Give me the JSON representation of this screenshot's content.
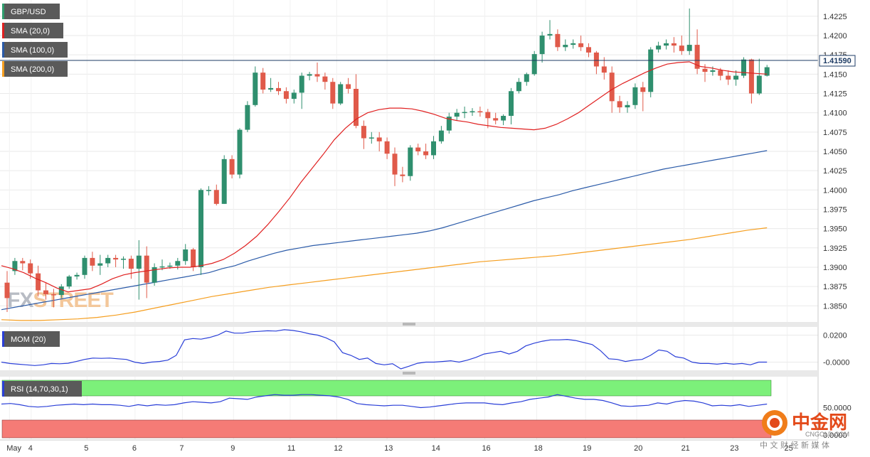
{
  "chart_data": {
    "type": "candlestick",
    "symbol": "GBP/USD",
    "current_price": "1.41590",
    "legend": [
      "GBP/USD",
      "SMA (20,0)",
      "SMA (100,0)",
      "SMA (200,0)"
    ],
    "y_ticks": [
      "1.4225",
      "1.4200",
      "1.4175",
      "1.4150",
      "1.4125",
      "1.4100",
      "1.4075",
      "1.4050",
      "1.4025",
      "1.4000",
      "1.3975",
      "1.3950",
      "1.3925",
      "1.3900",
      "1.3875",
      "1.3850"
    ],
    "ylim": [
      1.383,
      1.4235
    ],
    "x_ticks": [
      "May",
      "4",
      "5",
      "6",
      "7",
      "9",
      "11",
      "12",
      "13",
      "14",
      "16",
      "18",
      "19",
      "20",
      "21",
      "23",
      "25"
    ],
    "candles": [
      [
        1.388,
        1.3895,
        1.386,
        1.3842
      ],
      [
        1.3895,
        1.3912,
        1.3908,
        1.389
      ],
      [
        1.3908,
        1.3912,
        1.3905,
        1.3896
      ],
      [
        1.3905,
        1.391,
        1.3892,
        1.3885
      ],
      [
        1.3892,
        1.3902,
        1.387,
        1.3862
      ],
      [
        1.387,
        1.388,
        1.3865,
        1.3858
      ],
      [
        1.3865,
        1.3872,
        1.3864,
        1.3848
      ],
      [
        1.3864,
        1.3878,
        1.3875,
        1.386
      ],
      [
        1.3875,
        1.389,
        1.3888,
        1.3872
      ],
      [
        1.3888,
        1.3893,
        1.389,
        1.3884
      ],
      [
        1.389,
        1.3915,
        1.3912,
        1.3885
      ],
      [
        1.3912,
        1.392,
        1.3902,
        1.3895
      ],
      [
        1.3902,
        1.3916,
        1.3905,
        1.389
      ],
      [
        1.3905,
        1.3916,
        1.3912,
        1.39
      ],
      [
        1.3912,
        1.3916,
        1.391,
        1.39
      ],
      [
        1.391,
        1.3914,
        1.3911,
        1.3898
      ],
      [
        1.3911,
        1.3915,
        1.3898,
        1.3885
      ],
      [
        1.3898,
        1.3935,
        1.3915,
        1.3858
      ],
      [
        1.3915,
        1.3927,
        1.388,
        1.386
      ],
      [
        1.388,
        1.3905,
        1.39,
        1.3876
      ],
      [
        1.39,
        1.391,
        1.3901,
        1.3896
      ],
      [
        1.3901,
        1.3906,
        1.3902,
        1.3898
      ],
      [
        1.3902,
        1.3912,
        1.3908,
        1.3897
      ],
      [
        1.3908,
        1.393,
        1.3923,
        1.3903
      ],
      [
        1.3923,
        1.3925,
        1.39,
        1.3895
      ],
      [
        1.39,
        1.4002,
        1.4,
        1.389
      ],
      [
        1.4,
        1.4005,
        1.4,
        1.3993
      ],
      [
        1.4,
        1.4007,
        1.3982,
        1.398
      ],
      [
        1.3982,
        1.4045,
        1.404,
        1.3982
      ],
      [
        1.404,
        1.4045,
        1.402,
        1.4015
      ],
      [
        1.402,
        1.408,
        1.4078,
        1.4015
      ],
      [
        1.4078,
        1.4115,
        1.411,
        1.4075
      ],
      [
        1.411,
        1.416,
        1.4152,
        1.4108
      ],
      [
        1.4152,
        1.4158,
        1.413,
        1.4125
      ],
      [
        1.413,
        1.4145,
        1.4132,
        1.4127
      ],
      [
        1.4132,
        1.414,
        1.4128,
        1.4123
      ],
      [
        1.4128,
        1.4133,
        1.4118,
        1.4112
      ],
      [
        1.4118,
        1.413,
        1.4126,
        1.4112
      ],
      [
        1.4126,
        1.4152,
        1.4148,
        1.4105
      ],
      [
        1.4148,
        1.4153,
        1.415,
        1.4142
      ],
      [
        1.415,
        1.4165,
        1.4147,
        1.414
      ],
      [
        1.4147,
        1.4152,
        1.414,
        1.413
      ],
      [
        1.414,
        1.4145,
        1.4112,
        1.4105
      ],
      [
        1.4112,
        1.414,
        1.4137,
        1.411
      ],
      [
        1.4137,
        1.4145,
        1.4131,
        1.4125
      ],
      [
        1.4131,
        1.415,
        1.4083,
        1.408
      ],
      [
        1.4083,
        1.409,
        1.4067,
        1.4053
      ],
      [
        1.4067,
        1.4075,
        1.4068,
        1.406
      ],
      [
        1.4068,
        1.4075,
        1.4063,
        1.405
      ],
      [
        1.4063,
        1.4068,
        1.4047,
        1.404
      ],
      [
        1.4047,
        1.4055,
        1.402,
        1.4005
      ],
      [
        1.402,
        1.403,
        1.4018,
        1.401
      ],
      [
        1.4018,
        1.4058,
        1.4055,
        1.4012
      ],
      [
        1.4055,
        1.406,
        1.405,
        1.4045
      ],
      [
        1.405,
        1.406,
        1.4045,
        1.404
      ],
      [
        1.4045,
        1.407,
        1.4063,
        1.404
      ],
      [
        1.4063,
        1.4083,
        1.4077,
        1.406
      ],
      [
        1.4077,
        1.41,
        1.4095,
        1.4073
      ],
      [
        1.4095,
        1.4105,
        1.41,
        1.409
      ],
      [
        1.41,
        1.4108,
        1.4101,
        1.4093
      ],
      [
        1.4101,
        1.4106,
        1.4102,
        1.4096
      ],
      [
        1.4102,
        1.4108,
        1.4101,
        1.4095
      ],
      [
        1.4101,
        1.4105,
        1.4093,
        1.408
      ],
      [
        1.4093,
        1.41,
        1.409,
        1.4085
      ],
      [
        1.409,
        1.4098,
        1.4096,
        1.4084
      ],
      [
        1.4096,
        1.4132,
        1.4128,
        1.4085
      ],
      [
        1.4128,
        1.4145,
        1.414,
        1.4125
      ],
      [
        1.414,
        1.4152,
        1.415,
        1.4135
      ],
      [
        1.415,
        1.418,
        1.4176,
        1.4148
      ],
      [
        1.4176,
        1.4205,
        1.42,
        1.4165
      ],
      [
        1.42,
        1.422,
        1.4202,
        1.4195
      ],
      [
        1.4202,
        1.4208,
        1.4185,
        1.418
      ],
      [
        1.4185,
        1.4195,
        1.4188,
        1.418
      ],
      [
        1.4188,
        1.4195,
        1.419,
        1.4183
      ],
      [
        1.419,
        1.42,
        1.4185,
        1.418
      ],
      [
        1.4185,
        1.419,
        1.4178,
        1.4172
      ],
      [
        1.4178,
        1.418,
        1.416,
        1.415
      ],
      [
        1.416,
        1.4172,
        1.4152,
        1.4143
      ],
      [
        1.4152,
        1.416,
        1.4115,
        1.41
      ],
      [
        1.4115,
        1.4122,
        1.4107,
        1.41
      ],
      [
        1.4107,
        1.4115,
        1.411,
        1.41
      ],
      [
        1.411,
        1.4138,
        1.4133,
        1.4105
      ],
      [
        1.4133,
        1.414,
        1.4127,
        1.4102
      ],
      [
        1.4127,
        1.4185,
        1.4182,
        1.412
      ],
      [
        1.4182,
        1.4192,
        1.4187,
        1.4178
      ],
      [
        1.4187,
        1.4195,
        1.419,
        1.4182
      ],
      [
        1.419,
        1.4198,
        1.4187,
        1.4178
      ],
      [
        1.4187,
        1.42,
        1.418,
        1.4175
      ],
      [
        1.418,
        1.4235,
        1.4188,
        1.4175
      ],
      [
        1.4188,
        1.4208,
        1.4157,
        1.415
      ],
      [
        1.4157,
        1.4163,
        1.4153,
        1.414
      ],
      [
        1.4153,
        1.416,
        1.4155,
        1.4148
      ],
      [
        1.4155,
        1.4158,
        1.4148,
        1.4142
      ],
      [
        1.4148,
        1.4155,
        1.4143,
        1.4136
      ],
      [
        1.4143,
        1.4155,
        1.4148,
        1.4135
      ],
      [
        1.4148,
        1.4172,
        1.4169,
        1.4145
      ],
      [
        1.4169,
        1.417,
        1.4125,
        1.4112
      ],
      [
        1.4125,
        1.417,
        1.4148,
        1.4123
      ],
      [
        1.4148,
        1.4162,
        1.4159,
        1.4147
      ]
    ],
    "sma20": [
      1.3902,
      1.3898,
      1.3893,
      1.3886,
      1.388,
      1.3873,
      1.3868,
      1.387,
      1.3872,
      1.3878,
      1.3885,
      1.389,
      1.3893,
      1.3895,
      1.3897,
      1.3899,
      1.39,
      1.39,
      1.3902,
      1.3905,
      1.391,
      1.3918,
      1.3928,
      1.394,
      1.3955,
      1.3972,
      1.399,
      1.401,
      1.4028,
      1.4046,
      1.4065,
      1.408,
      1.4092,
      1.41,
      1.4104,
      1.4106,
      1.4106,
      1.4105,
      1.4102,
      1.4098,
      1.4093,
      1.409,
      1.4088,
      1.4085,
      1.4083,
      1.4081,
      1.408,
      1.4079,
      1.4078,
      1.408,
      1.4085,
      1.4092,
      1.41,
      1.411,
      1.412,
      1.413,
      1.4138,
      1.4145,
      1.4152,
      1.4158,
      1.4163,
      1.4165,
      1.4166,
      1.416,
      1.4158,
      1.4155,
      1.4153,
      1.4152,
      1.4151,
      1.415
    ],
    "sma100": [
      1.3845,
      1.3848,
      1.3851,
      1.3854,
      1.3857,
      1.386,
      1.3863,
      1.3866,
      1.3869,
      1.3872,
      1.3875,
      1.3878,
      1.3881,
      1.3884,
      1.3887,
      1.389,
      1.3893,
      1.3898,
      1.3902,
      1.3908,
      1.3913,
      1.3918,
      1.3922,
      1.3925,
      1.3928,
      1.393,
      1.3932,
      1.3934,
      1.3936,
      1.3938,
      1.394,
      1.3942,
      1.3944,
      1.3947,
      1.3951,
      1.3956,
      1.3961,
      1.3966,
      1.3971,
      1.3976,
      1.3981,
      1.3986,
      1.399,
      1.3994,
      1.3999,
      1.4003,
      1.4007,
      1.4011,
      1.4015,
      1.4019,
      1.4023,
      1.4027,
      1.403,
      1.4033,
      1.4036,
      1.4039,
      1.4042,
      1.4045,
      1.4048,
      1.4051
    ],
    "sma200": [
      1.3832,
      1.3831,
      1.3831,
      1.3832,
      1.3833,
      1.3835,
      1.3838,
      1.3842,
      1.3847,
      1.3852,
      1.3857,
      1.3862,
      1.3866,
      1.387,
      1.3874,
      1.3877,
      1.388,
      1.3883,
      1.3886,
      1.3889,
      1.3892,
      1.3895,
      1.3898,
      1.3901,
      1.3904,
      1.3907,
      1.3909,
      1.3911,
      1.3913,
      1.3915,
      1.3918,
      1.3921,
      1.3924,
      1.3927,
      1.393,
      1.3933,
      1.3936,
      1.394,
      1.3944,
      1.3948,
      1.3951
    ],
    "mom_panel": {
      "label": "MOM (20)",
      "ticks": [
        "0.0200",
        "-0.0000"
      ],
      "ylim": [
        -0.0055,
        0.025
      ],
      "values": [
        0.0,
        -0.001,
        -0.0015,
        -0.002,
        -0.0025,
        -0.002,
        -0.001,
        -0.0012,
        -0.0008,
        0.0005,
        0.002,
        0.003,
        0.0028,
        0.003,
        0.0025,
        0.002,
        0.0,
        -0.001,
        0.0,
        0.0005,
        0.0015,
        0.005,
        0.0165,
        0.0175,
        0.017,
        0.0182,
        0.02,
        0.023,
        0.0215,
        0.0215,
        0.0225,
        0.0228,
        0.0232,
        0.023,
        0.024,
        0.0235,
        0.0225,
        0.021,
        0.02,
        0.018,
        0.015,
        0.007,
        0.005,
        0.002,
        0.003,
        -0.001,
        -0.002,
        -0.0012,
        -0.005,
        -0.003,
        -0.0008,
        0.0,
        0.0,
        0.0005,
        0.001,
        0.0,
        0.0015,
        0.0035,
        0.006,
        0.007,
        0.008,
        0.006,
        0.008,
        0.012,
        0.014,
        0.0155,
        0.0165,
        0.0165,
        0.0168,
        0.016,
        0.0145,
        0.013,
        0.0085,
        0.0025,
        0.002,
        0.0005,
        0.0015,
        0.002,
        0.005,
        0.009,
        0.008,
        0.004,
        0.003,
        0.0,
        -0.001,
        -0.001,
        -0.0015,
        -0.0008,
        -0.0015,
        -0.001,
        -0.002,
        0.0,
        0.0
      ]
    },
    "rsi_panel": {
      "label": "RSI (14,70,30,1)",
      "ticks": [
        "50.0000",
        "0.0000"
      ],
      "ylim": [
        0,
        100
      ],
      "overbought": 70,
      "oversold": 30,
      "values": [
        56,
        57,
        55,
        52,
        51,
        52,
        54,
        55,
        56,
        55,
        56,
        55,
        55,
        54,
        52,
        55,
        53,
        55,
        54,
        55,
        58,
        60,
        59,
        58,
        60,
        66,
        65,
        64,
        68,
        70,
        72,
        71,
        71,
        72,
        72,
        71,
        70,
        68,
        64,
        57,
        55,
        54,
        53,
        54,
        54,
        52,
        50,
        51,
        53,
        55,
        57,
        58,
        58,
        58,
        56,
        55,
        58,
        60,
        64,
        66,
        68,
        72,
        69,
        66,
        64,
        64,
        62,
        58,
        53,
        52,
        53,
        54,
        58,
        56,
        60,
        62,
        61,
        58,
        53,
        54,
        53,
        55,
        52,
        54,
        56
      ]
    },
    "watermark_text": "FXSTREET",
    "logo": {
      "name": "中金网",
      "sub": "CNGOLD.COM",
      "tagline": "中 文 财 经 新 媒 体"
    }
  }
}
